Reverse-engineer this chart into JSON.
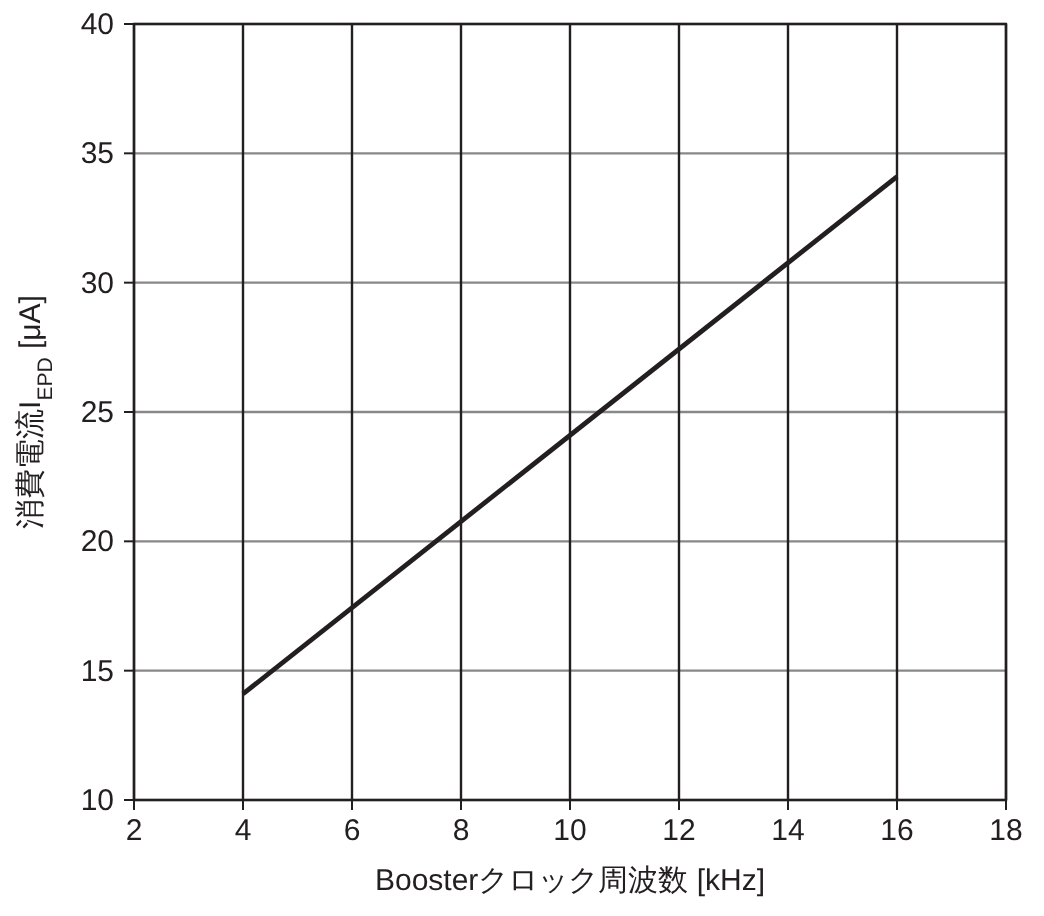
{
  "chart_data": {
    "type": "line",
    "xlabel": "Boosterクロック周波数 [kHz]",
    "ylabel": "消費電流I$_{EPD}$ [μA]",
    "series": [
      {
        "color": "#231f20",
        "x": [
          4,
          16
        ],
        "values": [
          14.1,
          34.1
        ]
      }
    ],
    "xlim": [
      2,
      18
    ],
    "xticks": [
      2,
      4,
      6,
      8,
      10,
      12,
      14,
      16,
      18
    ],
    "ylim": [
      10,
      40
    ],
    "yticks": [
      10,
      15,
      20,
      25,
      30,
      35,
      40
    ],
    "grid": true,
    "marker": "none",
    "line_style": "solid"
  }
}
